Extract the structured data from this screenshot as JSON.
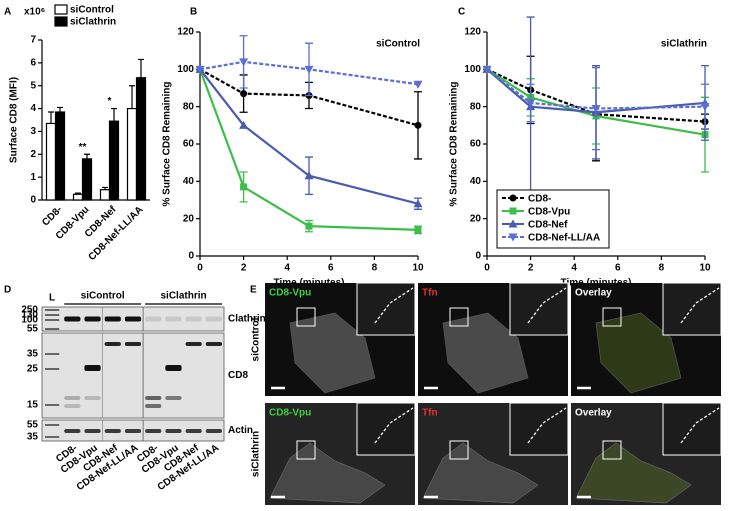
{
  "panel_labels": [
    "A",
    "B",
    "C",
    "D",
    "E"
  ],
  "chart_data": [
    {
      "type": "bar",
      "y_label": "Surface CD8 (MFI)",
      "y_multiplier": "x10⁶",
      "categories": [
        "CD8-",
        "CD8-Vpu",
        "CD8-Nef",
        "CD8-Nef-LL/AA"
      ],
      "series": [
        {
          "name": "siControl",
          "color": "#ffffff",
          "values": [
            3.35,
            0.25,
            0.45,
            4.0
          ],
          "errors": [
            0.5,
            0.05,
            0.1,
            1.0
          ]
        },
        {
          "name": "siClathrin",
          "color": "#000000",
          "values": [
            3.85,
            1.8,
            3.45,
            5.35
          ],
          "errors": [
            0.2,
            0.2,
            0.55,
            0.8
          ]
        }
      ],
      "ylim": [
        0,
        7
      ],
      "yticks": [
        0,
        1,
        2,
        3,
        4,
        5,
        6,
        7
      ],
      "legend": "top",
      "annotations": [
        {
          "text": "**",
          "category": "CD8-Vpu"
        },
        {
          "text": "*",
          "category": "CD8-Nef"
        }
      ]
    },
    {
      "type": "line",
      "subtitle": "siControl",
      "x_label": "Time (minutes)",
      "y_label": "% Surface CD8 Remaining",
      "x": [
        0,
        2,
        5,
        10
      ],
      "xlim": [
        0,
        10
      ],
      "xticks": [
        0,
        2,
        4,
        6,
        8,
        10
      ],
      "ylim": [
        0,
        120
      ],
      "yticks": [
        0,
        20,
        40,
        60,
        80,
        100,
        120
      ],
      "series": [
        {
          "color": "#000000",
          "marker": "circle",
          "dashed": true,
          "values": [
            100,
            87,
            86,
            70
          ],
          "errors": [
            null,
            10,
            7,
            18
          ]
        },
        {
          "color": "#3dbe4a",
          "marker": "square",
          "dashed": false,
          "values": [
            100,
            37,
            16,
            14
          ],
          "errors": [
            null,
            8,
            3,
            2
          ]
        },
        {
          "color": "#4a5bb0",
          "marker": "triangle-up",
          "dashed": false,
          "values": [
            100,
            70,
            43,
            28
          ],
          "errors": [
            null,
            null,
            10,
            3
          ]
        },
        {
          "color": "#5a6ed6",
          "marker": "triangle-down",
          "dashed": true,
          "values": [
            100,
            104,
            100,
            92
          ],
          "errors": [
            null,
            14,
            14,
            null
          ]
        }
      ]
    },
    {
      "type": "line",
      "subtitle": "siClathrin",
      "x_label": "Time (minutes)",
      "y_label": "% Surface CD8 Remaining",
      "x": [
        0,
        2,
        5,
        10
      ],
      "xlim": [
        0,
        10
      ],
      "xticks": [
        0,
        2,
        4,
        6,
        8,
        10
      ],
      "ylim": [
        0,
        120
      ],
      "yticks": [
        0,
        20,
        40,
        60,
        80,
        100,
        120
      ],
      "legend": "lower left",
      "series": [
        {
          "name": "CD8-",
          "color": "#000000",
          "marker": "circle",
          "dashed": true,
          "values": [
            100,
            89,
            76,
            72
          ],
          "errors": [
            null,
            18,
            25,
            4
          ]
        },
        {
          "name": "CD8-Vpu",
          "color": "#3dbe4a",
          "marker": "square",
          "dashed": false,
          "values": [
            100,
            85,
            75,
            65
          ],
          "errors": [
            null,
            10,
            15,
            20
          ]
        },
        {
          "name": "CD8-Nef",
          "color": "#4a5bb0",
          "marker": "triangle-up",
          "dashed": false,
          "values": [
            100,
            80,
            77,
            82
          ],
          "errors": [
            null,
            48,
            25,
            20
          ]
        },
        {
          "name": "CD8-Nef-LL/AA",
          "color": "#5a6ed6",
          "marker": "triangle-down",
          "dashed": true,
          "values": [
            100,
            82,
            79,
            80
          ],
          "errors": [
            null,
            10,
            22,
            12
          ]
        }
      ]
    }
  ],
  "blot": {
    "ladder": "L",
    "groups": [
      "siControl",
      "siClathrin"
    ],
    "rows": [
      {
        "label": "Clathrin",
        "markers": [
          250,
          130,
          100,
          55
        ]
      },
      {
        "label": "CD8",
        "markers": [
          35,
          25,
          15
        ]
      },
      {
        "label": "Actin",
        "markers": [
          55,
          35
        ]
      }
    ],
    "lanes": [
      "CD8-",
      "CD8-Vpu",
      "CD8-Nef",
      "CD8-Nef-LL/AA",
      "CD8-",
      "CD8-Vpu",
      "CD8-Nef",
      "CD8-Nef-LL/AA"
    ]
  },
  "microscopy": {
    "columns": [
      {
        "label": "CD8-Vpu",
        "color": "#3fd13f"
      },
      {
        "label": "Tfn",
        "color": "#e03030"
      },
      {
        "label": "Overlay",
        "color": "#ffffff"
      }
    ],
    "rows": [
      "siControl",
      "siClathrin"
    ]
  }
}
